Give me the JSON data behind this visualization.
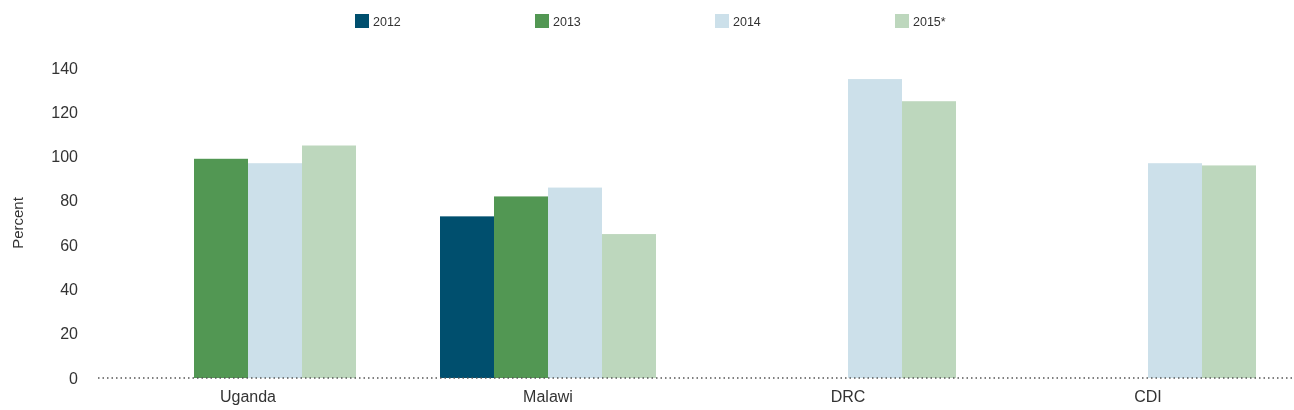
{
  "chart_data": {
    "type": "bar",
    "ylabel": "Percent",
    "categories": [
      "Uganda",
      "Malawi",
      "DRC",
      "CDI"
    ],
    "series": [
      {
        "name": "2012",
        "color": "#004f6e",
        "values": [
          null,
          73,
          null,
          null
        ]
      },
      {
        "name": "2013",
        "color": "#529753",
        "values": [
          99,
          82,
          null,
          null
        ]
      },
      {
        "name": "2014",
        "color": "#cce0ea",
        "values": [
          97,
          86,
          135,
          97
        ]
      },
      {
        "name": "2015*",
        "color": "#bdd7bd",
        "values": [
          105,
          65,
          125,
          96
        ]
      }
    ],
    "ylim": [
      0,
      140
    ],
    "yticks": [
      0,
      20,
      40,
      60,
      80,
      100,
      120,
      140
    ],
    "grid": false,
    "legend": "top"
  }
}
